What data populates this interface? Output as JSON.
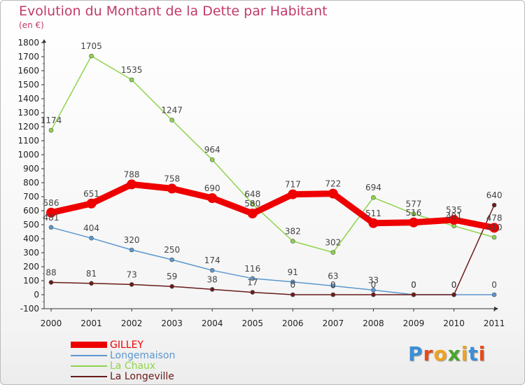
{
  "title": "Evolution du Montant de la Dette par Habitant",
  "subtitle": "(en €)",
  "logo": {
    "letters": [
      "P",
      "r",
      "o",
      "x",
      "i",
      "t",
      "i"
    ],
    "colors": [
      "#3a8fd6",
      "#e64a1a",
      "#f0a21b",
      "#4aa62c",
      "#f0a21b",
      "#3a8fd6",
      "#e64a1a"
    ]
  },
  "chart_data": {
    "type": "line",
    "categories": [
      "2000",
      "2001",
      "2002",
      "2003",
      "2004",
      "2005",
      "2006",
      "2007",
      "2008",
      "2009",
      "2010",
      "2011"
    ],
    "ylim": [
      -100,
      1800
    ],
    "yticks": [
      "-100",
      "0",
      "100",
      "200",
      "300",
      "400",
      "500",
      "600",
      "700",
      "800",
      "900",
      "1000",
      "1100",
      "1200",
      "1300",
      "1400",
      "1500",
      "1600",
      "1700",
      "1800"
    ],
    "grid": false,
    "legend_position": "bottom-left",
    "series": [
      {
        "name": "GILLEY",
        "color": "#ee0000",
        "values": [
          586,
          651,
          788,
          758,
          690,
          580,
          717,
          722,
          511,
          516,
          535,
          478
        ],
        "labels": [
          "586",
          "651",
          "788",
          "758",
          "690",
          "580",
          "717",
          "722",
          "511",
          "516",
          "535",
          "478"
        ]
      },
      {
        "name": "Longemaison",
        "color": "#5a97cf",
        "values": [
          481,
          404,
          320,
          250,
          174,
          116,
          91,
          63,
          33,
          0,
          0,
          0
        ],
        "labels": [
          "481",
          "404",
          "320",
          "250",
          "174",
          "116",
          "91",
          "63",
          "33",
          "0",
          "0",
          "0"
        ]
      },
      {
        "name": "La Chaux",
        "color": "#8fd44a",
        "values": [
          1174,
          1705,
          1535,
          1247,
          964,
          648,
          382,
          302,
          694,
          577,
          491,
          410
        ],
        "labels": [
          "1174",
          "1705",
          "1535",
          "1247",
          "964",
          "648",
          "382",
          "302",
          "694",
          "577",
          "491",
          "410"
        ]
      },
      {
        "name": "La Longeville",
        "color": "#6a1a1a",
        "values": [
          88,
          81,
          73,
          59,
          38,
          17,
          0,
          0,
          0,
          0,
          0,
          640
        ],
        "labels": [
          "88",
          "81",
          "73",
          "59",
          "38",
          "17",
          "0",
          "0",
          "0",
          "0",
          "0",
          "640"
        ]
      }
    ]
  }
}
